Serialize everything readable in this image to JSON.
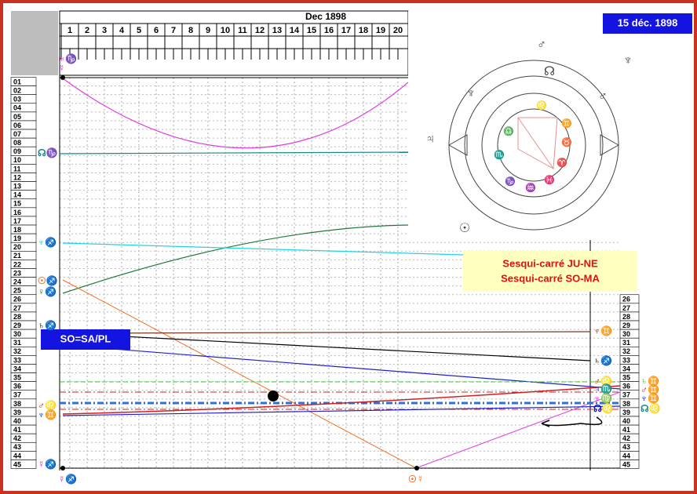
{
  "header": {
    "month": "Dec 1898",
    "days": [
      "1",
      "2",
      "3",
      "4",
      "5",
      "6",
      "7",
      "8",
      "9",
      "10",
      "11",
      "12",
      "13",
      "14",
      "15",
      "16",
      "17",
      "18",
      "19",
      "20"
    ]
  },
  "date_badge": "15 déc. 1898",
  "rows_left": [
    "01",
    "02",
    "03",
    "04",
    "05",
    "06",
    "07",
    "08",
    "09",
    "10",
    "11",
    "12",
    "13",
    "14",
    "15",
    "16",
    "17",
    "18",
    "19",
    "20",
    "21",
    "22",
    "23",
    "24",
    "25",
    "26",
    "27",
    "28",
    "29",
    "30",
    "31",
    "32",
    "33",
    "34",
    "35",
    "36",
    "37",
    "38",
    "39",
    "40",
    "41",
    "42",
    "43",
    "44",
    "45"
  ],
  "rows_right": [
    "26",
    "27",
    "28",
    "29",
    "30",
    "31",
    "32",
    "33",
    "34",
    "35",
    "36",
    "37",
    "38",
    "39",
    "40",
    "41",
    "42",
    "43",
    "44",
    "45"
  ],
  "notes": [
    "Sesqui-carré JU-NE",
    "Sesqui-carré SO-MA"
  ],
  "midpoint": "SO=SA/PL",
  "planet_labels": [
    "♅♑",
    "☿",
    "☊♑",
    "♆♐",
    "☉♐",
    "♀♐",
    "♄♐",
    "♂♌",
    "♆♊",
    "☿♐",
    "☿♐",
    "☉☿",
    "♆♊",
    "♄♐",
    "♂♌",
    "♃♏",
    "♆♍",
    "☊♌",
    "♂♊",
    "♄♊",
    "☊♌",
    "♆♊"
  ],
  "wheel": {
    "glyphs": [
      "♂",
      "♆",
      "♃",
      "☉",
      "♂",
      "☊",
      "♆",
      "♌",
      "♊",
      "♉",
      "♈",
      "♓",
      "♒",
      "♑",
      "♏",
      "♎"
    ]
  }
}
